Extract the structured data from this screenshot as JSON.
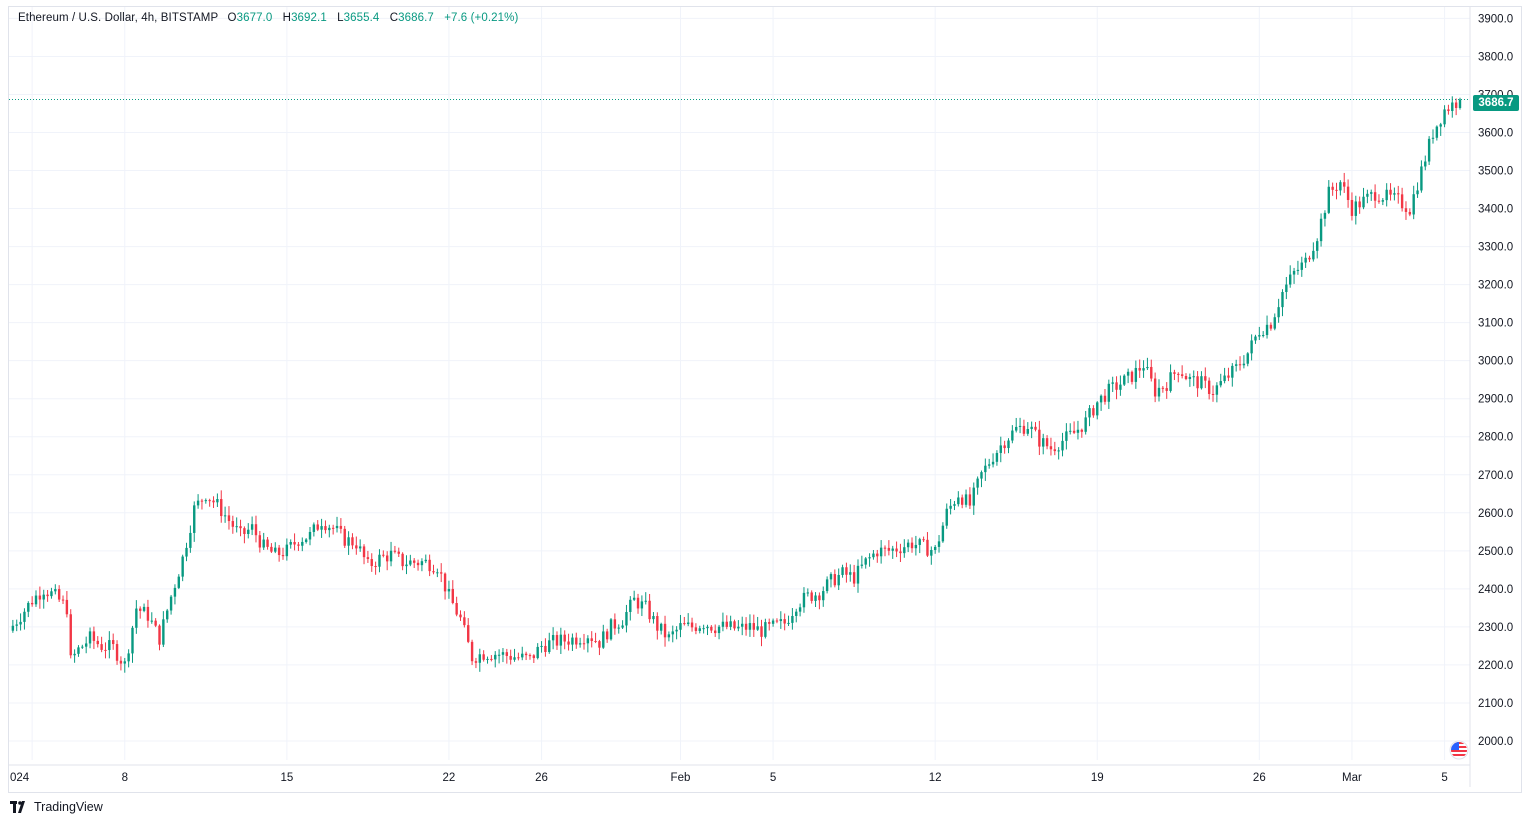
{
  "legend": {
    "symbol": "Ethereum / U.S. Dollar, 4h, BITSTAMP",
    "o_label": "O",
    "o_value": "3677.0",
    "h_label": "H",
    "h_value": "3692.1",
    "l_label": "L",
    "l_value": "3655.4",
    "c_label": "C",
    "c_value": "3686.7",
    "change": "+7.6 (+0.21%)"
  },
  "branding": {
    "name": "TradingView",
    "icon": "tradingview-logo-icon"
  },
  "last_price_label": "3686.7",
  "flag_icon": "us-flag-icon",
  "colors": {
    "up": "#089981",
    "down": "#f23645",
    "grid": "#f0f3fa",
    "text": "#131722"
  },
  "chart_data": {
    "type": "candlestick",
    "title": "Ethereum / U.S. Dollar, 4h, BITSTAMP",
    "interval": "4h",
    "ylim": [
      1950,
      3930
    ],
    "yticks": [
      2000,
      2100,
      2200,
      2300,
      2400,
      2500,
      2600,
      2700,
      2800,
      2900,
      3000,
      3100,
      3200,
      3300,
      3400,
      3500,
      3600,
      3700,
      3800,
      3900
    ],
    "ytick_labels": [
      "2000.0",
      "2100.0",
      "2200.0",
      "2300.0",
      "2400.0",
      "2500.0",
      "2600.0",
      "2700.0",
      "2800.0",
      "2900.0",
      "3000.0",
      "3100.0",
      "3200.0",
      "3300.0",
      "3400.0",
      "3500.0",
      "3600.0",
      "3700.0",
      "3800.0",
      "3900.0"
    ],
    "xrange": [
      "2024-01-03",
      "2024-03-05T16:00"
    ],
    "xticks": [
      {
        "date": "2024-01-04",
        "label": "024"
      },
      {
        "date": "2024-01-08",
        "label": "8"
      },
      {
        "date": "2024-01-15",
        "label": "15"
      },
      {
        "date": "2024-01-22",
        "label": "22"
      },
      {
        "date": "2024-01-26",
        "label": "26"
      },
      {
        "date": "2024-02-01",
        "label": "Feb"
      },
      {
        "date": "2024-02-05",
        "label": "5"
      },
      {
        "date": "2024-02-12",
        "label": "12"
      },
      {
        "date": "2024-02-19",
        "label": "19"
      },
      {
        "date": "2024-02-26",
        "label": "26"
      },
      {
        "date": "2024-03-01",
        "label": "Mar"
      },
      {
        "date": "2024-03-05",
        "label": "5"
      }
    ],
    "last_close": 3686.7,
    "price_path": [
      [
        "2024-01-03",
        2290
      ],
      [
        "2024-01-04",
        2370
      ],
      [
        "2024-01-04T12:00",
        2400
      ],
      [
        "2024-01-05",
        2380
      ],
      [
        "2024-01-05T12:00",
        2350
      ],
      [
        "2024-01-05T16:00",
        2210
      ],
      [
        "2024-01-06",
        2240
      ],
      [
        "2024-01-06T12:00",
        2270
      ],
      [
        "2024-01-07",
        2250
      ],
      [
        "2024-01-07T12:00",
        2245
      ],
      [
        "2024-01-08",
        2200
      ],
      [
        "2024-01-08T12:00",
        2350
      ],
      [
        "2024-01-09",
        2330
      ],
      [
        "2024-01-09T12:00",
        2270
      ],
      [
        "2024-01-10",
        2380
      ],
      [
        "2024-01-10T12:00",
        2480
      ],
      [
        "2024-01-11",
        2610
      ],
      [
        "2024-01-11T12:00",
        2650
      ],
      [
        "2024-01-12",
        2620
      ],
      [
        "2024-01-12T12:00",
        2580
      ],
      [
        "2024-01-13",
        2540
      ],
      [
        "2024-01-13T12:00",
        2560
      ],
      [
        "2024-01-14",
        2510
      ],
      [
        "2024-01-14T12:00",
        2490
      ],
      [
        "2024-01-15",
        2500
      ],
      [
        "2024-01-15T12:00",
        2530
      ],
      [
        "2024-01-16",
        2540
      ],
      [
        "2024-01-16T12:00",
        2580
      ],
      [
        "2024-01-17",
        2560
      ],
      [
        "2024-01-17T12:00",
        2530
      ],
      [
        "2024-01-18",
        2520
      ],
      [
        "2024-01-18T12:00",
        2460
      ],
      [
        "2024-01-19",
        2480
      ],
      [
        "2024-01-19T12:00",
        2490
      ],
      [
        "2024-01-20",
        2470
      ],
      [
        "2024-01-20T12:00",
        2470
      ],
      [
        "2024-01-21",
        2470
      ],
      [
        "2024-01-21T12:00",
        2460
      ],
      [
        "2024-01-22",
        2380
      ],
      [
        "2024-01-22T12:00",
        2320
      ],
      [
        "2024-01-23",
        2220
      ],
      [
        "2024-01-23T12:00",
        2230
      ],
      [
        "2024-01-24",
        2230
      ],
      [
        "2024-01-24T12:00",
        2225
      ],
      [
        "2024-01-25",
        2220
      ],
      [
        "2024-01-25T12:00",
        2215
      ],
      [
        "2024-01-26",
        2250
      ],
      [
        "2024-01-26T12:00",
        2260
      ],
      [
        "2024-01-27",
        2265
      ],
      [
        "2024-01-27T12:00",
        2270
      ],
      [
        "2024-01-28",
        2280
      ],
      [
        "2024-01-28T12:00",
        2260
      ],
      [
        "2024-01-29",
        2300
      ],
      [
        "2024-01-29T12:00",
        2320
      ],
      [
        "2024-01-30",
        2370
      ],
      [
        "2024-01-30T12:00",
        2350
      ],
      [
        "2024-01-31",
        2300
      ],
      [
        "2024-01-31T12:00",
        2270
      ],
      [
        "2024-02-01",
        2300
      ],
      [
        "2024-02-01T12:00",
        2300
      ],
      [
        "2024-02-02",
        2310
      ],
      [
        "2024-02-02T12:00",
        2300
      ],
      [
        "2024-02-03",
        2300
      ],
      [
        "2024-02-03T12:00",
        2295
      ],
      [
        "2024-02-04",
        2300
      ],
      [
        "2024-02-04T12:00",
        2290
      ],
      [
        "2024-02-05",
        2300
      ],
      [
        "2024-02-05T12:00",
        2310
      ],
      [
        "2024-02-06",
        2360
      ],
      [
        "2024-02-06T12:00",
        2380
      ],
      [
        "2024-02-07",
        2390
      ],
      [
        "2024-02-07T12:00",
        2420
      ],
      [
        "2024-02-08",
        2440
      ],
      [
        "2024-02-08T12:00",
        2430
      ],
      [
        "2024-02-09",
        2470
      ],
      [
        "2024-02-09T12:00",
        2500
      ],
      [
        "2024-02-10",
        2500
      ],
      [
        "2024-02-10T12:00",
        2510
      ],
      [
        "2024-02-11",
        2520
      ],
      [
        "2024-02-11T12:00",
        2510
      ],
      [
        "2024-02-12",
        2500
      ],
      [
        "2024-02-12T12:00",
        2600
      ],
      [
        "2024-02-13",
        2650
      ],
      [
        "2024-02-13T12:00",
        2620
      ],
      [
        "2024-02-14",
        2700
      ],
      [
        "2024-02-14T12:00",
        2750
      ],
      [
        "2024-02-15",
        2790
      ],
      [
        "2024-02-15T12:00",
        2820
      ],
      [
        "2024-02-16",
        2830
      ],
      [
        "2024-02-16T12:00",
        2790
      ],
      [
        "2024-02-17",
        2770
      ],
      [
        "2024-02-17T12:00",
        2790
      ],
      [
        "2024-02-18",
        2810
      ],
      [
        "2024-02-18T12:00",
        2840
      ],
      [
        "2024-02-19",
        2890
      ],
      [
        "2024-02-19T12:00",
        2920
      ],
      [
        "2024-02-20",
        2940
      ],
      [
        "2024-02-20T12:00",
        2960
      ],
      [
        "2024-02-21",
        2990
      ],
      [
        "2024-02-21T12:00",
        2920
      ],
      [
        "2024-02-22",
        2940
      ],
      [
        "2024-02-22T12:00",
        2980
      ],
      [
        "2024-02-23",
        2950
      ],
      [
        "2024-02-23T12:00",
        2940
      ],
      [
        "2024-02-24",
        2920
      ],
      [
        "2024-02-24T12:00",
        2950
      ],
      [
        "2024-02-25",
        2980
      ],
      [
        "2024-02-25T12:00",
        3020
      ],
      [
        "2024-02-26",
        3080
      ],
      [
        "2024-02-26T12:00",
        3100
      ],
      [
        "2024-02-27",
        3180
      ],
      [
        "2024-02-27T12:00",
        3230
      ],
      [
        "2024-02-28",
        3260
      ],
      [
        "2024-02-28T12:00",
        3330
      ],
      [
        "2024-02-29",
        3440
      ],
      [
        "2024-02-29T12:00",
        3470
      ],
      [
        "2024-03-01",
        3400
      ],
      [
        "2024-03-01T12:00",
        3420
      ],
      [
        "2024-03-02",
        3440
      ],
      [
        "2024-03-02T12:00",
        3430
      ],
      [
        "2024-03-03",
        3420
      ],
      [
        "2024-03-03T12:00",
        3400
      ],
      [
        "2024-03-04",
        3500
      ],
      [
        "2024-03-04T12:00",
        3600
      ],
      [
        "2024-03-05",
        3660
      ],
      [
        "2024-03-05T12:00",
        3680
      ],
      [
        "2024-03-05T16:00",
        3686.7
      ]
    ]
  }
}
